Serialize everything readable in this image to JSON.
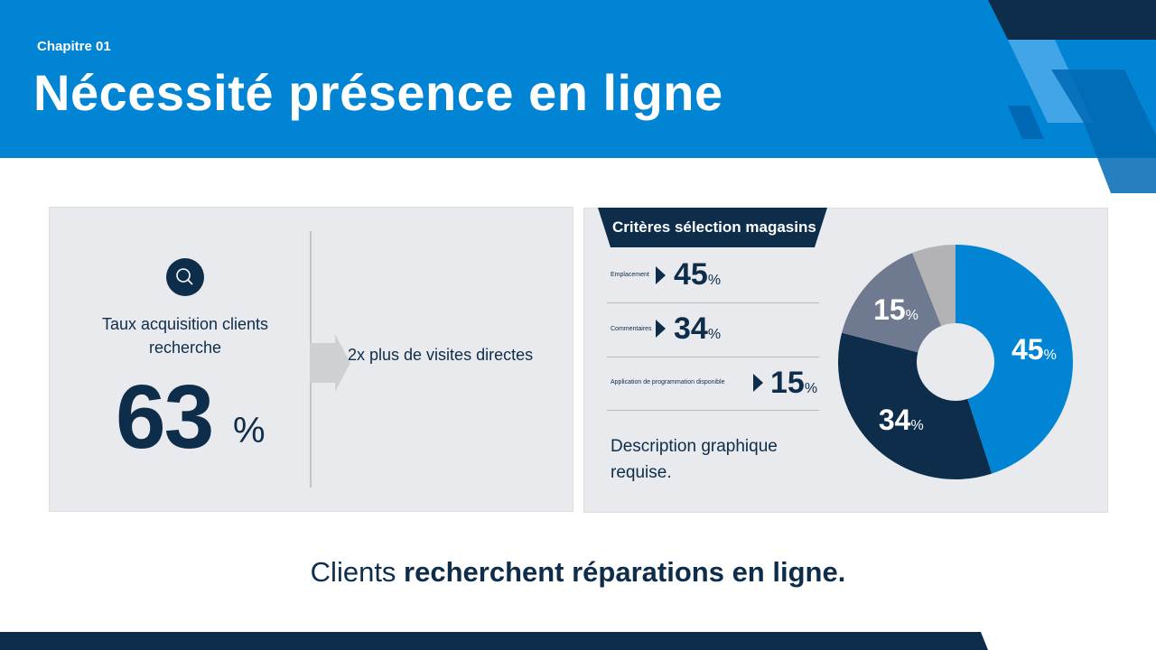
{
  "header": {
    "chapter": "Chapitre 01",
    "title": "Nécessité présence en ligne"
  },
  "left_card": {
    "icon": "search-icon",
    "label": "Taux acquisition clients recherche",
    "value": "63",
    "unit": "%",
    "arrow_text": "2x plus de visites directes"
  },
  "right_card": {
    "ribbon": "Critères sélection magasins",
    "rows": [
      {
        "label": "Emplacement",
        "value": "45",
        "unit": "%"
      },
      {
        "label": "Commentaires",
        "value": "34",
        "unit": "%"
      },
      {
        "label": "Application de programmation disponible",
        "value": "15",
        "unit": "%"
      }
    ],
    "description": "Description graphique requise."
  },
  "chart_data": {
    "type": "pie",
    "donut": true,
    "values": [
      45,
      34,
      15,
      6
    ],
    "labels": [
      "45%",
      "34%",
      "15%",
      ""
    ],
    "colors": [
      "#0284d4",
      "#0d2d4b",
      "#6f7a90",
      "#b3b3b5"
    ]
  },
  "footer": {
    "normal": "Clients ",
    "bold": "recherchent réparations en ligne."
  },
  "colors": {
    "primary": "#0284d4",
    "navy": "#0d2d4b",
    "card": "#e9eaed"
  }
}
